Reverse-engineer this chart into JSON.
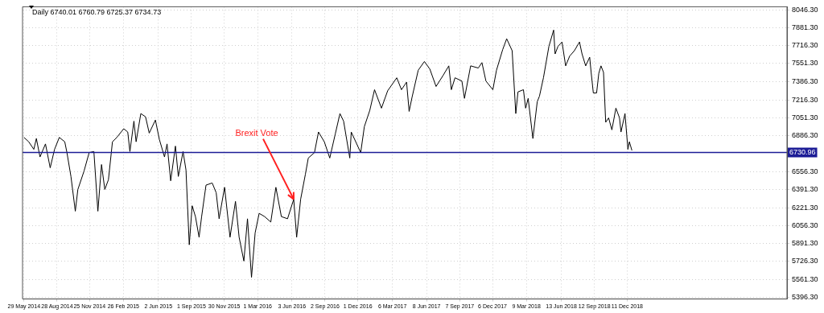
{
  "chart_data": {
    "type": "line",
    "title": "Daily 6740.01 6760.79 6725.37 6734.73",
    "x": [
      "2014-05-29",
      "2014-06-11",
      "2014-06-25",
      "2014-07-02",
      "2014-07-12",
      "2014-07-27",
      "2014-08-09",
      "2014-08-21",
      "2014-09-03",
      "2014-09-18",
      "2014-09-24",
      "2014-10-05",
      "2014-10-17",
      "2014-10-24",
      "2014-11-10",
      "2014-11-24",
      "2014-12-07",
      "2014-12-18",
      "2014-12-28",
      "2015-01-06",
      "2015-01-16",
      "2015-01-27",
      "2015-02-08",
      "2015-02-27",
      "2015-03-10",
      "2015-03-16",
      "2015-03-27",
      "2015-04-02",
      "2015-04-15",
      "2015-04-28",
      "2015-05-08",
      "2015-05-25",
      "2015-06-05",
      "2015-06-19",
      "2015-06-26",
      "2015-07-06",
      "2015-07-19",
      "2015-07-27",
      "2015-08-09",
      "2015-08-17",
      "2015-08-26",
      "2015-09-03",
      "2015-09-12",
      "2015-09-22",
      "2015-09-29",
      "2015-10-11",
      "2015-10-28",
      "2015-11-08",
      "2015-11-16",
      "2015-12-01",
      "2015-12-16",
      "2015-12-31",
      "2016-01-10",
      "2016-01-23",
      "2016-02-02",
      "2016-02-13",
      "2016-02-23",
      "2016-03-05",
      "2016-03-20",
      "2016-04-06",
      "2016-04-20",
      "2016-05-05",
      "2016-05-22",
      "2016-06-08",
      "2016-06-16",
      "2016-06-27",
      "2016-07-10",
      "2016-07-18",
      "2016-08-04",
      "2016-08-15",
      "2016-08-31",
      "2016-09-15",
      "2016-09-30",
      "2016-10-13",
      "2016-10-23",
      "2016-11-09",
      "2016-11-13",
      "2016-12-09",
      "2016-12-19",
      "2017-01-03",
      "2017-01-16",
      "2017-02-04",
      "2017-02-21",
      "2017-03-18",
      "2017-03-31",
      "2017-04-14",
      "2017-04-21",
      "2017-04-29",
      "2017-05-16",
      "2017-06-02",
      "2017-06-17",
      "2017-07-04",
      "2017-07-23",
      "2017-08-08",
      "2017-08-15",
      "2017-08-25",
      "2017-09-13",
      "2017-09-20",
      "2017-10-07",
      "2017-10-28",
      "2017-11-07",
      "2017-11-18",
      "2017-12-07",
      "2017-12-17",
      "2018-01-03",
      "2018-01-14",
      "2018-01-29",
      "2018-02-08",
      "2018-02-14",
      "2018-03-01",
      "2018-03-07",
      "2018-03-14",
      "2018-03-27",
      "2018-04-08",
      "2018-04-14",
      "2018-04-25",
      "2018-05-10",
      "2018-05-23",
      "2018-05-27",
      "2018-06-04",
      "2018-06-15",
      "2018-06-25",
      "2018-07-06",
      "2018-07-19",
      "2018-08-02",
      "2018-08-09",
      "2018-08-19",
      "2018-08-30",
      "2018-09-03",
      "2018-09-09",
      "2018-09-18",
      "2018-09-24",
      "2018-09-30",
      "2018-10-07",
      "2018-10-13",
      "2018-10-21",
      "2018-10-30",
      "2018-11-10",
      "2018-11-20",
      "2018-11-24",
      "2018-12-05",
      "2018-12-13",
      "2018-12-17",
      "2018-12-24"
    ],
    "values": [
      6870,
      6830,
      6760,
      6860,
      6690,
      6810,
      6590,
      6760,
      6870,
      6830,
      6730,
      6510,
      6190,
      6390,
      6560,
      6730,
      6740,
      6190,
      6620,
      6390,
      6480,
      6830,
      6870,
      6950,
      6920,
      6740,
      7020,
      6830,
      7090,
      7060,
      6910,
      7030,
      6850,
      6690,
      6810,
      6470,
      6790,
      6510,
      6740,
      6570,
      5880,
      6240,
      6140,
      5950,
      6140,
      6430,
      6450,
      6360,
      6120,
      6410,
      5950,
      6280,
      5950,
      5730,
      6120,
      5580,
      5990,
      6170,
      6140,
      6090,
      6410,
      6140,
      6120,
      6300,
      5950,
      6300,
      6530,
      6680,
      6730,
      6920,
      6830,
      6680,
      6900,
      7090,
      7020,
      6680,
      6920,
      6730,
      6970,
      7120,
      7310,
      7140,
      7300,
      7420,
      7310,
      7380,
      7110,
      7240,
      7490,
      7570,
      7500,
      7340,
      7440,
      7530,
      7310,
      7420,
      7390,
      7230,
      7530,
      7510,
      7560,
      7390,
      7310,
      7490,
      7680,
      7780,
      7670,
      7090,
      7290,
      7310,
      7140,
      7230,
      6860,
      7200,
      7250,
      7420,
      7710,
      7860,
      7640,
      7710,
      7750,
      7530,
      7620,
      7670,
      7750,
      7640,
      7530,
      7610,
      7470,
      7280,
      7280,
      7460,
      7530,
      7470,
      7010,
      7050,
      6940,
      7140,
      7050,
      6920,
      7090,
      6760,
      6830,
      6750
    ],
    "color": "#000000",
    "marker": "none",
    "line_style": "solid",
    "grid": true,
    "xlim": [
      "2014-05-25",
      "2020-02-23"
    ],
    "xticks": [
      {
        "value": "2014-05-29",
        "label": "29 May 2014"
      },
      {
        "value": "2014-08-28",
        "label": "28 Aug 2014"
      },
      {
        "value": "2014-11-25",
        "label": "25 Nov 2014"
      },
      {
        "value": "2015-02-26",
        "label": "26 Feb 2015"
      },
      {
        "value": "2015-06-02",
        "label": "2 Jun 2015"
      },
      {
        "value": "2015-09-01",
        "label": "1 Sep 2015"
      },
      {
        "value": "2015-11-30",
        "label": "30 Nov 2015"
      },
      {
        "value": "2016-03-01",
        "label": "1 Mar 2016"
      },
      {
        "value": "2016-06-03",
        "label": "3 Jun 2016"
      },
      {
        "value": "2016-09-02",
        "label": "2 Sep 2016"
      },
      {
        "value": "2016-12-01",
        "label": "1 Dec 2016"
      },
      {
        "value": "2017-03-06",
        "label": "6 Mar 2017"
      },
      {
        "value": "2017-06-08",
        "label": "8 Jun 2017"
      },
      {
        "value": "2017-09-07",
        "label": "7 Sep 2017"
      },
      {
        "value": "2017-12-06",
        "label": "6 Dec 2017"
      },
      {
        "value": "2018-03-09",
        "label": "9 Mar 2018"
      },
      {
        "value": "2018-06-13",
        "label": "13 Jun 2018"
      },
      {
        "value": "2018-09-12",
        "label": "12 Sep 2018"
      },
      {
        "value": "2018-12-11",
        "label": "11 Dec 2018"
      }
    ],
    "ylim": [
      5380,
      8075
    ],
    "yticks": [
      {
        "value": 5396.3,
        "label": "5396.30"
      },
      {
        "value": 5561.3,
        "label": "5561.30"
      },
      {
        "value": 5726.3,
        "label": "5726.30"
      },
      {
        "value": 5891.3,
        "label": "5891.30"
      },
      {
        "value": 6056.3,
        "label": "6056.30"
      },
      {
        "value": 6221.3,
        "label": "6221.30"
      },
      {
        "value": 6391.3,
        "label": "6391.30"
      },
      {
        "value": 6556.3,
        "label": "6556.30"
      },
      {
        "value": 6886.3,
        "label": "6886.30"
      },
      {
        "value": 7051.3,
        "label": "7051.30"
      },
      {
        "value": 7216.3,
        "label": "7216.30"
      },
      {
        "value": 7386.3,
        "label": "7386.30"
      },
      {
        "value": 7551.3,
        "label": "7551.30"
      },
      {
        "value": 7716.3,
        "label": "7716.30"
      },
      {
        "value": 7881.3,
        "label": "7881.30"
      },
      {
        "value": 8046.3,
        "label": "8046.30"
      }
    ],
    "ref_lines": [
      {
        "axis": "y",
        "value": 6730.96,
        "label": "6730.96",
        "color": "#1c1c96"
      }
    ],
    "annotations": [
      {
        "text": "Brexit Vote",
        "x": "2016-06-08",
        "y": 6300
      }
    ]
  }
}
